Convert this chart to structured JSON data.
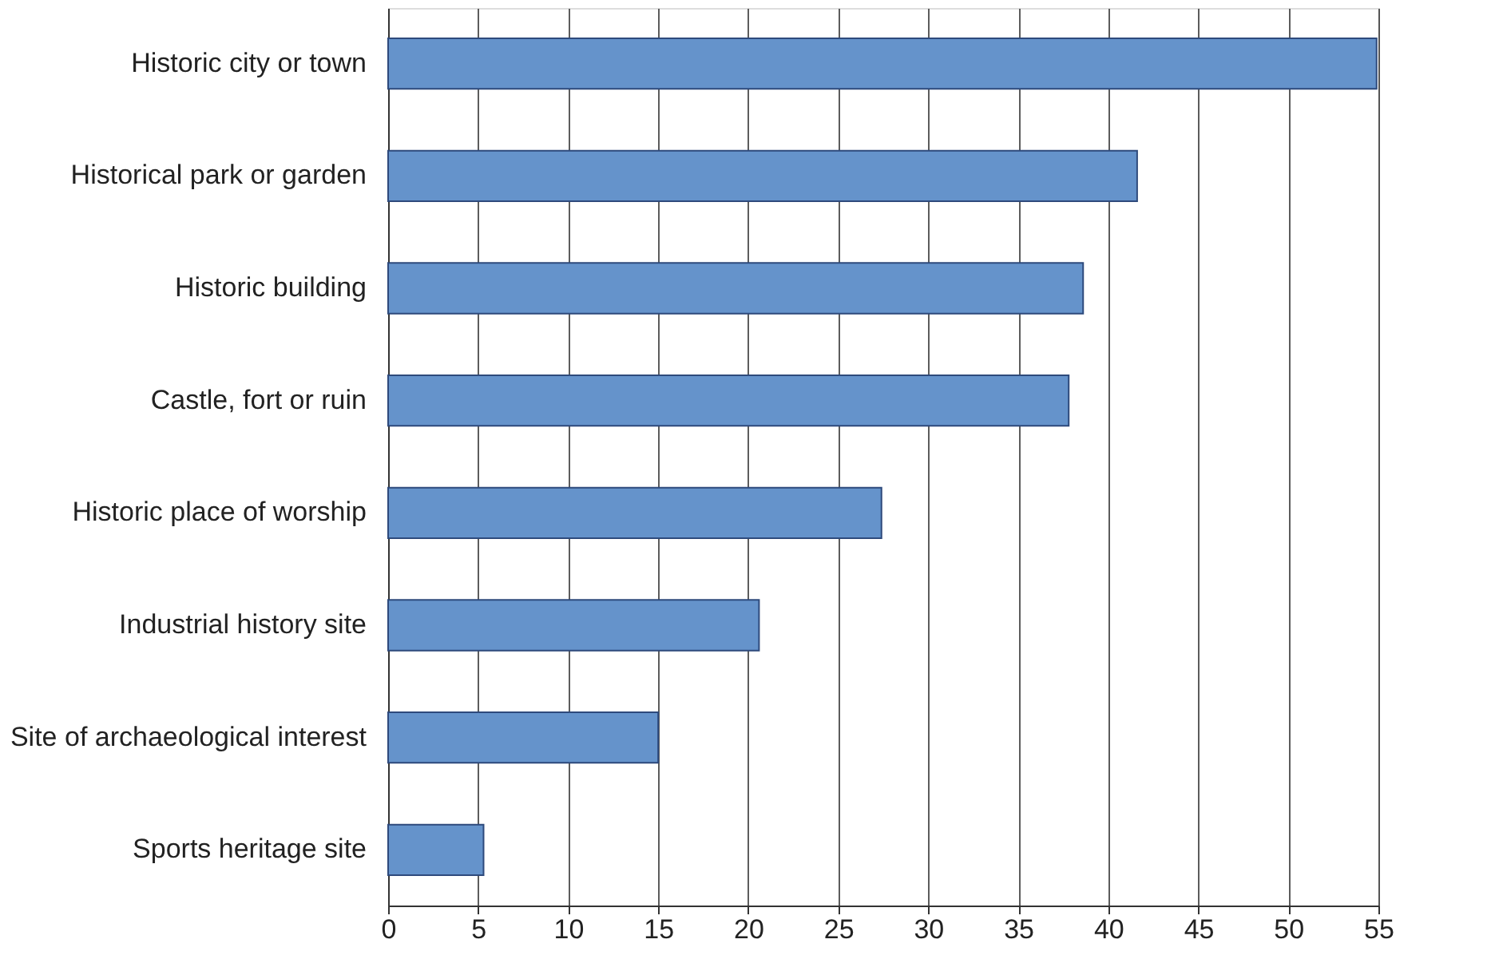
{
  "chart_data": {
    "type": "bar",
    "orientation": "horizontal",
    "categories": [
      "Historic city or town",
      "Historical park or garden",
      "Historic building",
      "Castle, fort or ruin",
      "Historic place of worship",
      "Industrial history site",
      "Site of archaeological interest",
      "Sports heritage site"
    ],
    "values": [
      54.9,
      41.6,
      38.6,
      37.8,
      27.4,
      20.6,
      15.0,
      5.3
    ],
    "color": "#6593cb",
    "xlim": [
      0,
      55
    ],
    "xticks": [
      0,
      5,
      10,
      15,
      20,
      25,
      30,
      35,
      40,
      45,
      50,
      55
    ],
    "grid": "x"
  }
}
